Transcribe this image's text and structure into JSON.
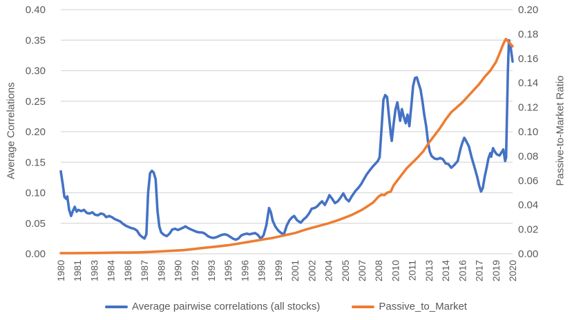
{
  "chart_data": {
    "type": "line",
    "title": "",
    "grid": true,
    "legend_position": "bottom",
    "colors": {
      "gridline": "#D9D9D9",
      "axis_text": "#595959",
      "background": "#FFFFFF"
    },
    "x_axis": {
      "range": [
        1980,
        2020.5
      ],
      "tick_labels": [
        "1980",
        "1981",
        "1983",
        "1984",
        "1986",
        "1987",
        "1989",
        "1990",
        "1992",
        "1993",
        "1995",
        "1996",
        "1998",
        "1999",
        "2001",
        "2002",
        "2004",
        "2005",
        "2007",
        "2008",
        "2010",
        "2011",
        "2013",
        "2014",
        "2016",
        "2017",
        "2019",
        "2020"
      ],
      "tick_positions": [
        1980,
        1981.5,
        1983,
        1984.5,
        1986,
        1987.5,
        1989,
        1990.5,
        1992,
        1993.5,
        1995,
        1996.5,
        1998,
        1999.5,
        2001,
        2002.5,
        2004,
        2005.5,
        2007,
        2008.5,
        2010,
        2011.5,
        2013,
        2014.5,
        2016,
        2017.5,
        2019,
        2020.5
      ]
    },
    "y_axis_left": {
      "title": "Average Correlations",
      "min": 0,
      "max": 0.4,
      "step": 0.05,
      "tick_labels": [
        "0.40",
        "0.35",
        "0.30",
        "0.25",
        "0.20",
        "0.15",
        "0.10",
        "0.05",
        "0.00"
      ]
    },
    "y_axis_right": {
      "title": "Passive-to-Market Ratio",
      "min": 0,
      "max": 0.2,
      "step": 0.02,
      "tick_labels": [
        "0.20",
        "0.18",
        "0.16",
        "0.14",
        "0.12",
        "0.10",
        "0.08",
        "0.06",
        "0.04",
        "0.02",
        "0.00"
      ]
    },
    "series": [
      {
        "name": "Average pairwise correlations (all stocks)",
        "axis": "left",
        "color": "#4472C4",
        "points": [
          [
            1980.0,
            0.135
          ],
          [
            1980.17,
            0.115
          ],
          [
            1980.33,
            0.093
          ],
          [
            1980.5,
            0.09
          ],
          [
            1980.58,
            0.094
          ],
          [
            1980.75,
            0.072
          ],
          [
            1980.92,
            0.062
          ],
          [
            1981.08,
            0.07
          ],
          [
            1981.25,
            0.077
          ],
          [
            1981.42,
            0.069
          ],
          [
            1981.58,
            0.072
          ],
          [
            1981.83,
            0.07
          ],
          [
            1982.08,
            0.072
          ],
          [
            1982.33,
            0.067
          ],
          [
            1982.58,
            0.066
          ],
          [
            1982.83,
            0.068
          ],
          [
            1983.08,
            0.064
          ],
          [
            1983.33,
            0.063
          ],
          [
            1983.58,
            0.066
          ],
          [
            1983.83,
            0.065
          ],
          [
            1984.08,
            0.06
          ],
          [
            1984.33,
            0.062
          ],
          [
            1984.58,
            0.06
          ],
          [
            1984.83,
            0.057
          ],
          [
            1985.08,
            0.055
          ],
          [
            1985.33,
            0.053
          ],
          [
            1985.58,
            0.049
          ],
          [
            1985.83,
            0.046
          ],
          [
            1986.08,
            0.044
          ],
          [
            1986.33,
            0.042
          ],
          [
            1986.58,
            0.041
          ],
          [
            1986.83,
            0.038
          ],
          [
            1987.08,
            0.031
          ],
          [
            1987.33,
            0.027
          ],
          [
            1987.5,
            0.025
          ],
          [
            1987.67,
            0.032
          ],
          [
            1987.83,
            0.1
          ],
          [
            1988.0,
            0.132
          ],
          [
            1988.17,
            0.136
          ],
          [
            1988.33,
            0.133
          ],
          [
            1988.5,
            0.122
          ],
          [
            1988.67,
            0.07
          ],
          [
            1988.83,
            0.045
          ],
          [
            1989.0,
            0.035
          ],
          [
            1989.25,
            0.031
          ],
          [
            1989.5,
            0.029
          ],
          [
            1989.75,
            0.033
          ],
          [
            1990.0,
            0.04
          ],
          [
            1990.25,
            0.041
          ],
          [
            1990.5,
            0.039
          ],
          [
            1990.75,
            0.041
          ],
          [
            1991.0,
            0.043
          ],
          [
            1991.17,
            0.045
          ],
          [
            1991.42,
            0.042
          ],
          [
            1991.67,
            0.04
          ],
          [
            1991.92,
            0.038
          ],
          [
            1992.17,
            0.036
          ],
          [
            1992.42,
            0.035
          ],
          [
            1992.67,
            0.035
          ],
          [
            1992.92,
            0.033
          ],
          [
            1993.17,
            0.029
          ],
          [
            1993.42,
            0.027
          ],
          [
            1993.67,
            0.026
          ],
          [
            1993.92,
            0.027
          ],
          [
            1994.17,
            0.029
          ],
          [
            1994.42,
            0.031
          ],
          [
            1994.67,
            0.032
          ],
          [
            1994.92,
            0.031
          ],
          [
            1995.17,
            0.028
          ],
          [
            1995.42,
            0.025
          ],
          [
            1995.67,
            0.023
          ],
          [
            1995.92,
            0.025
          ],
          [
            1996.17,
            0.03
          ],
          [
            1996.42,
            0.032
          ],
          [
            1996.67,
            0.033
          ],
          [
            1996.92,
            0.032
          ],
          [
            1997.17,
            0.033
          ],
          [
            1997.42,
            0.034
          ],
          [
            1997.67,
            0.031
          ],
          [
            1997.92,
            0.025
          ],
          [
            1998.17,
            0.03
          ],
          [
            1998.42,
            0.046
          ],
          [
            1998.67,
            0.075
          ],
          [
            1998.83,
            0.068
          ],
          [
            1999.0,
            0.054
          ],
          [
            1999.25,
            0.044
          ],
          [
            1999.5,
            0.038
          ],
          [
            1999.75,
            0.034
          ],
          [
            2000.0,
            0.032
          ],
          [
            2000.25,
            0.046
          ],
          [
            2000.5,
            0.055
          ],
          [
            2000.75,
            0.06
          ],
          [
            2000.92,
            0.062
          ],
          [
            2001.17,
            0.055
          ],
          [
            2001.5,
            0.051
          ],
          [
            2001.75,
            0.056
          ],
          [
            2002.0,
            0.06
          ],
          [
            2002.25,
            0.066
          ],
          [
            2002.5,
            0.074
          ],
          [
            2002.75,
            0.075
          ],
          [
            2003.0,
            0.078
          ],
          [
            2003.25,
            0.083
          ],
          [
            2003.42,
            0.086
          ],
          [
            2003.67,
            0.08
          ],
          [
            2003.92,
            0.089
          ],
          [
            2004.08,
            0.096
          ],
          [
            2004.33,
            0.09
          ],
          [
            2004.58,
            0.083
          ],
          [
            2004.83,
            0.086
          ],
          [
            2005.08,
            0.092
          ],
          [
            2005.33,
            0.099
          ],
          [
            2005.58,
            0.09
          ],
          [
            2005.83,
            0.086
          ],
          [
            2006.08,
            0.094
          ],
          [
            2006.42,
            0.103
          ],
          [
            2006.67,
            0.108
          ],
          [
            2006.92,
            0.114
          ],
          [
            2007.17,
            0.122
          ],
          [
            2007.42,
            0.13
          ],
          [
            2007.67,
            0.136
          ],
          [
            2007.92,
            0.142
          ],
          [
            2008.17,
            0.147
          ],
          [
            2008.42,
            0.152
          ],
          [
            2008.58,
            0.158
          ],
          [
            2008.75,
            0.205
          ],
          [
            2008.92,
            0.252
          ],
          [
            2009.08,
            0.26
          ],
          [
            2009.25,
            0.257
          ],
          [
            2009.42,
            0.225
          ],
          [
            2009.58,
            0.196
          ],
          [
            2009.67,
            0.185
          ],
          [
            2009.83,
            0.212
          ],
          [
            2010.0,
            0.236
          ],
          [
            2010.17,
            0.248
          ],
          [
            2010.33,
            0.229
          ],
          [
            2010.42,
            0.218
          ],
          [
            2010.58,
            0.237
          ],
          [
            2010.75,
            0.224
          ],
          [
            2010.92,
            0.214
          ],
          [
            2011.08,
            0.228
          ],
          [
            2011.25,
            0.209
          ],
          [
            2011.42,
            0.242
          ],
          [
            2011.58,
            0.275
          ],
          [
            2011.75,
            0.288
          ],
          [
            2011.92,
            0.289
          ],
          [
            2012.08,
            0.279
          ],
          [
            2012.25,
            0.269
          ],
          [
            2012.42,
            0.25
          ],
          [
            2012.58,
            0.228
          ],
          [
            2012.75,
            0.209
          ],
          [
            2012.92,
            0.183
          ],
          [
            2013.08,
            0.167
          ],
          [
            2013.25,
            0.16
          ],
          [
            2013.5,
            0.156
          ],
          [
            2013.75,
            0.155
          ],
          [
            2014.0,
            0.157
          ],
          [
            2014.25,
            0.155
          ],
          [
            2014.5,
            0.148
          ],
          [
            2014.75,
            0.147
          ],
          [
            2015.0,
            0.141
          ],
          [
            2015.25,
            0.145
          ],
          [
            2015.58,
            0.152
          ],
          [
            2015.83,
            0.172
          ],
          [
            2016.0,
            0.182
          ],
          [
            2016.17,
            0.19
          ],
          [
            2016.33,
            0.185
          ],
          [
            2016.58,
            0.176
          ],
          [
            2016.83,
            0.158
          ],
          [
            2017.08,
            0.142
          ],
          [
            2017.33,
            0.126
          ],
          [
            2017.5,
            0.112
          ],
          [
            2017.67,
            0.102
          ],
          [
            2017.83,
            0.108
          ],
          [
            2018.0,
            0.126
          ],
          [
            2018.17,
            0.141
          ],
          [
            2018.33,
            0.156
          ],
          [
            2018.5,
            0.165
          ],
          [
            2018.58,
            0.159
          ],
          [
            2018.75,
            0.173
          ],
          [
            2018.92,
            0.167
          ],
          [
            2019.08,
            0.163
          ],
          [
            2019.33,
            0.161
          ],
          [
            2019.5,
            0.166
          ],
          [
            2019.67,
            0.171
          ],
          [
            2019.83,
            0.152
          ],
          [
            2019.92,
            0.158
          ],
          [
            2020.08,
            0.3
          ],
          [
            2020.17,
            0.35
          ],
          [
            2020.33,
            0.338
          ],
          [
            2020.5,
            0.315
          ]
        ]
      },
      {
        "name": "Passive_to_Market",
        "axis": "right",
        "color": "#ED7D31",
        "points": [
          [
            1980,
            0.0005
          ],
          [
            1981,
            0.0005
          ],
          [
            1982,
            0.0006
          ],
          [
            1983,
            0.0007
          ],
          [
            1984,
            0.0008
          ],
          [
            1985,
            0.001
          ],
          [
            1986,
            0.001
          ],
          [
            1987,
            0.0012
          ],
          [
            1988,
            0.0015
          ],
          [
            1989,
            0.002
          ],
          [
            1990,
            0.0025
          ],
          [
            1991,
            0.003
          ],
          [
            1992,
            0.004
          ],
          [
            1993,
            0.005
          ],
          [
            1994,
            0.006
          ],
          [
            1995,
            0.007
          ],
          [
            1996,
            0.0085
          ],
          [
            1997,
            0.01
          ],
          [
            1998,
            0.0115
          ],
          [
            1999,
            0.013
          ],
          [
            2000,
            0.015
          ],
          [
            2001,
            0.017
          ],
          [
            2002,
            0.02
          ],
          [
            2003,
            0.0225
          ],
          [
            2004,
            0.025
          ],
          [
            2005,
            0.028
          ],
          [
            2006,
            0.0315
          ],
          [
            2007,
            0.036
          ],
          [
            2008,
            0.042
          ],
          [
            2008.5,
            0.047
          ],
          [
            2008.75,
            0.0485
          ],
          [
            2009.0,
            0.048
          ],
          [
            2009.25,
            0.05
          ],
          [
            2009.58,
            0.051
          ],
          [
            2009.83,
            0.056
          ],
          [
            2010.0,
            0.058
          ],
          [
            2010.5,
            0.064
          ],
          [
            2011.0,
            0.07
          ],
          [
            2011.5,
            0.0745
          ],
          [
            2012.0,
            0.079
          ],
          [
            2012.5,
            0.084
          ],
          [
            2013.0,
            0.091
          ],
          [
            2013.5,
            0.097
          ],
          [
            2014.0,
            0.103
          ],
          [
            2014.5,
            0.11
          ],
          [
            2015.0,
            0.116
          ],
          [
            2015.5,
            0.12
          ],
          [
            2016.0,
            0.124
          ],
          [
            2016.5,
            0.129
          ],
          [
            2017.0,
            0.134
          ],
          [
            2017.5,
            0.139
          ],
          [
            2018.0,
            0.145
          ],
          [
            2018.5,
            0.15
          ],
          [
            2019.0,
            0.157
          ],
          [
            2019.33,
            0.164
          ],
          [
            2019.67,
            0.172
          ],
          [
            2019.9,
            0.176
          ],
          [
            2020.1,
            0.174
          ],
          [
            2020.3,
            0.172
          ],
          [
            2020.5,
            0.17
          ]
        ]
      }
    ]
  }
}
